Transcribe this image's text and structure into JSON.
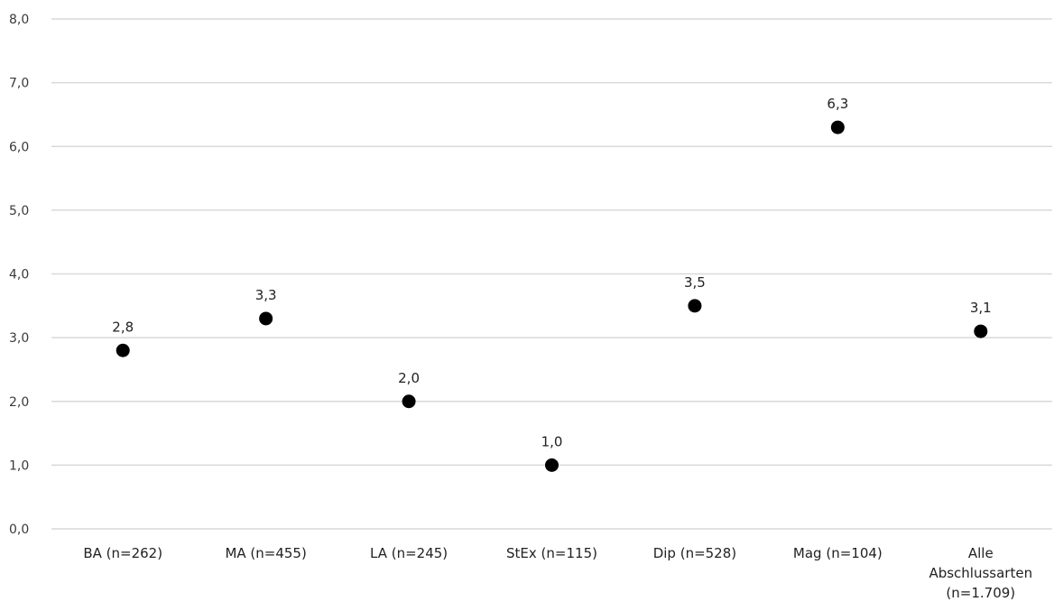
{
  "chart_data": {
    "type": "scatter",
    "categories": [
      [
        "BA (n=262)"
      ],
      [
        "MA (n=455)"
      ],
      [
        "LA (n=245)"
      ],
      [
        "StEx (n=115)"
      ],
      [
        "Dip (n=528)"
      ],
      [
        "Mag (n=104)"
      ],
      [
        "Alle",
        "Abschlussarten",
        "(n=1.709)"
      ]
    ],
    "values": [
      2.8,
      3.3,
      2.0,
      1.0,
      3.5,
      6.3,
      3.1
    ],
    "value_labels": [
      "2,8",
      "3,3",
      "2,0",
      "1,0",
      "3,5",
      "6,3",
      "3,1"
    ],
    "ylim": [
      0,
      8
    ],
    "yticks": [
      0,
      1,
      2,
      3,
      4,
      5,
      6,
      7,
      8
    ],
    "ytick_labels": [
      "0,0",
      "1,0",
      "2,0",
      "3,0",
      "4,0",
      "5,0",
      "6,0",
      "7,0",
      "8,0"
    ],
    "grid": true,
    "marker_color": "#000000",
    "grid_color": "#d9d9d9"
  }
}
